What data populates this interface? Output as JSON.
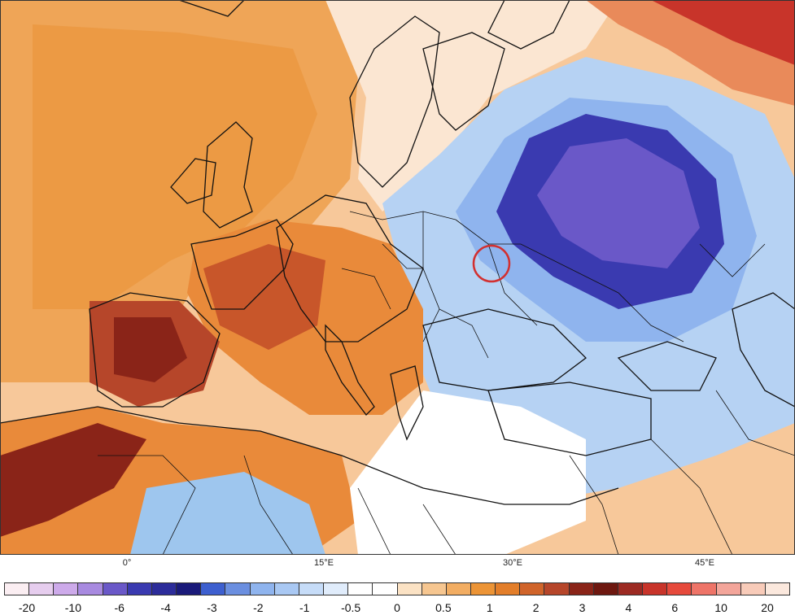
{
  "map": {
    "longitude_labels": [
      "0°",
      "15°E",
      "30°E",
      "45°E"
    ],
    "marker": "red-circle",
    "colors": {
      "ocean_warm": "#f2b070",
      "land_warm": "#e98a3a",
      "hot": "#b6462a",
      "very_hot": "#8a2418",
      "cool": "#9ec6ee",
      "cold": "#5a78d6",
      "very_cold": "#2c2c9a",
      "coldest": "#6a58c8",
      "neutral": "#ffffff",
      "marker": "#d23030"
    }
  },
  "colorbar": {
    "labels": [
      "-20",
      "-10",
      "-6",
      "-4",
      "-3",
      "-2",
      "-1",
      "-0.5",
      "0",
      "0.5",
      "1",
      "2",
      "3",
      "4",
      "6",
      "10",
      "20"
    ],
    "colors": [
      "#fbeef2",
      "#e6cdee",
      "#cdaaea",
      "#a88ae0",
      "#6a58c8",
      "#3a3ab0",
      "#2c2c9a",
      "#1a1a7a",
      "#3d5fcf",
      "#6b8fe0",
      "#8fb4ee",
      "#a9c8f3",
      "#c6dcf8",
      "#e0ecfb",
      "#ffffff",
      "#ffffff",
      "#fbe2c4",
      "#f6c690",
      "#f2ad62",
      "#ec9436",
      "#e37e2a",
      "#d0642a",
      "#b6462a",
      "#8a2418",
      "#6e1810",
      "#9c2a22",
      "#c8342a",
      "#e64a3c",
      "#ee7468",
      "#f3a59a",
      "#f8cbb9",
      "#fbe8dd"
    ]
  }
}
